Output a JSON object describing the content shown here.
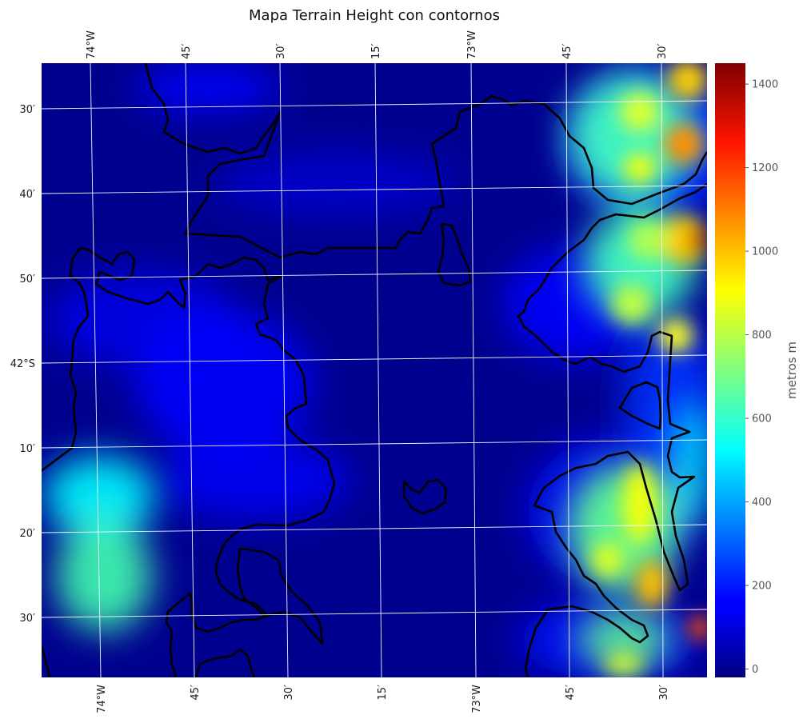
{
  "title": "Mapa Terrain Height con contornos",
  "map": {
    "top_lon_labels": [
      "74°W",
      "45′",
      "30′",
      "15′",
      "73°W",
      "45′",
      "30′"
    ],
    "bottom_lon_labels": [
      "74°W",
      "45′",
      "30′",
      "15′",
      "73°W",
      "45′",
      "30′"
    ],
    "lat_labels": [
      "30′",
      "40′",
      "50′",
      "42°S",
      "10′",
      "20′",
      "30′"
    ]
  },
  "colorbar": {
    "label": "metros m",
    "ticks": [
      "0",
      "200",
      "400",
      "600",
      "800",
      "1000",
      "1200",
      "1400"
    ],
    "range": [
      -20,
      1450
    ],
    "colormap": "jet"
  },
  "colors": {
    "background": "#00008f",
    "contour": "#000000",
    "gridline": "#ffffff"
  }
}
